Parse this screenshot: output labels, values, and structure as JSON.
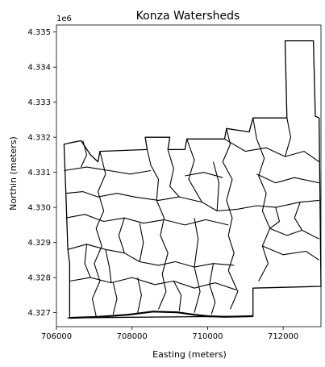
{
  "title": "Konza Watersheds",
  "x_axis": {
    "label": "Easting (meters)",
    "range": [
      706000,
      713000
    ],
    "ticks": [
      706000,
      708000,
      710000,
      712000
    ],
    "tick_labels": [
      "706000",
      "708000",
      "710000",
      "712000"
    ]
  },
  "y_axis": {
    "label": "Northin (meters)",
    "offset_label": "1e6",
    "range": [
      4326600,
      4335200
    ],
    "ticks": [
      4327000,
      4328000,
      4329000,
      4330000,
      4331000,
      4332000,
      4333000,
      4334000,
      4335000
    ],
    "tick_labels": [
      "4.327",
      "4.328",
      "4.329",
      "4.330",
      "4.331",
      "4.332",
      "4.333",
      "4.334",
      "4.335"
    ]
  },
  "style": {
    "stroke": "#000000",
    "fill": "none",
    "background": "#ffffff"
  },
  "watersheds": {
    "boundary": [
      [
        706300,
        4326850
      ],
      [
        711200,
        4326900
      ],
      [
        711200,
        4327700
      ],
      [
        713000,
        4327750
      ],
      [
        712950,
        4332550
      ],
      [
        712850,
        4332600
      ],
      [
        712800,
        4334750
      ],
      [
        712050,
        4334750
      ],
      [
        712100,
        4332550
      ],
      [
        711200,
        4332550
      ],
      [
        711100,
        4332150
      ],
      [
        710500,
        4332250
      ],
      [
        710450,
        4331950
      ],
      [
        709450,
        4331950
      ],
      [
        709400,
        4331650
      ],
      [
        708950,
        4331650
      ],
      [
        709000,
        4332000
      ],
      [
        708350,
        4332000
      ],
      [
        708400,
        4331650
      ],
      [
        707150,
        4331600
      ],
      [
        707100,
        4331300
      ],
      [
        706900,
        4331500
      ],
      [
        706650,
        4331900
      ],
      [
        706400,
        4331850
      ],
      [
        706200,
        4331800
      ],
      [
        706250,
        4330400
      ],
      [
        706300,
        4328800
      ],
      [
        706350,
        4328400
      ],
      [
        706350,
        4326850
      ]
    ],
    "bottom_edge": [
      [
        706350,
        4326850
      ],
      [
        707100,
        4326880
      ],
      [
        707900,
        4326940
      ],
      [
        708550,
        4327030
      ],
      [
        709200,
        4327010
      ],
      [
        709650,
        4326940
      ],
      [
        710000,
        4326900
      ],
      [
        710450,
        4326880
      ],
      [
        711200,
        4326900
      ]
    ],
    "divides": [
      [
        [
          706250,
          4330400
        ],
        [
          706700,
          4330450
        ],
        [
          707100,
          4330300
        ],
        [
          707600,
          4330400
        ],
        [
          708050,
          4330300
        ],
        [
          708700,
          4330200
        ],
        [
          709250,
          4330300
        ],
        [
          709850,
          4330150
        ],
        [
          710250,
          4329900
        ],
        [
          710800,
          4329950
        ],
        [
          711300,
          4330050
        ],
        [
          711800,
          4330000
        ],
        [
          712450,
          4330150
        ],
        [
          712950,
          4330200
        ]
      ],
      [
        [
          706300,
          4328800
        ],
        [
          706800,
          4328950
        ],
        [
          707300,
          4328800
        ],
        [
          707800,
          4328700
        ],
        [
          708200,
          4328450
        ],
        [
          708700,
          4328350
        ],
        [
          709150,
          4328450
        ],
        [
          709650,
          4328300
        ],
        [
          710150,
          4328400
        ],
        [
          710700,
          4328350
        ]
      ],
      [
        [
          708400,
          4331650
        ],
        [
          708500,
          4331200
        ],
        [
          708700,
          4330800
        ],
        [
          708650,
          4330200
        ],
        [
          708850,
          4329700
        ],
        [
          708750,
          4329200
        ],
        [
          708950,
          4328700
        ],
        [
          708800,
          4328100
        ],
        [
          708900,
          4327600
        ],
        [
          708700,
          4327100
        ]
      ],
      [
        [
          710500,
          4332250
        ],
        [
          710600,
          4331800
        ],
        [
          710400,
          4331300
        ],
        [
          710650,
          4330800
        ],
        [
          710500,
          4330200
        ],
        [
          710650,
          4329700
        ],
        [
          710550,
          4329200
        ],
        [
          710700,
          4328700
        ],
        [
          710550,
          4328200
        ],
        [
          710800,
          4327600
        ],
        [
          710600,
          4327100
        ]
      ],
      [
        [
          711200,
          4332550
        ],
        [
          711300,
          4331950
        ],
        [
          711500,
          4331400
        ],
        [
          711350,
          4330900
        ],
        [
          711550,
          4330400
        ],
        [
          711450,
          4329900
        ],
        [
          711650,
          4329400
        ],
        [
          711450,
          4328900
        ],
        [
          711600,
          4328400
        ],
        [
          711350,
          4327900
        ]
      ],
      [
        [
          707150,
          4331600
        ],
        [
          707300,
          4330950
        ],
        [
          707100,
          4330450
        ],
        [
          707250,
          4329900
        ],
        [
          707050,
          4329400
        ],
        [
          707200,
          4328900
        ],
        [
          707000,
          4328400
        ],
        [
          707150,
          4327900
        ],
        [
          706950,
          4327400
        ],
        [
          707050,
          4326900
        ]
      ],
      [
        [
          706200,
          4331050
        ],
        [
          706800,
          4331150
        ],
        [
          707400,
          4331050
        ],
        [
          707950,
          4330950
        ],
        [
          708500,
          4331050
        ]
      ],
      [
        [
          706250,
          4329700
        ],
        [
          706750,
          4329800
        ],
        [
          707250,
          4329600
        ],
        [
          707800,
          4329700
        ],
        [
          708300,
          4329550
        ],
        [
          708850,
          4329650
        ],
        [
          709400,
          4329500
        ],
        [
          709950,
          4329650
        ],
        [
          710550,
          4329500
        ]
      ],
      [
        [
          706350,
          4327900
        ],
        [
          706900,
          4328000
        ],
        [
          707450,
          4327850
        ],
        [
          708000,
          4328000
        ],
        [
          708600,
          4327800
        ],
        [
          709100,
          4327900
        ],
        [
          709650,
          4327700
        ],
        [
          710200,
          4327850
        ],
        [
          710750,
          4327650
        ]
      ],
      [
        [
          708950,
          4331650
        ],
        [
          709100,
          4331100
        ],
        [
          709000,
          4330600
        ],
        [
          709250,
          4330300
        ]
      ],
      [
        [
          709450,
          4331950
        ],
        [
          709650,
          4331350
        ],
        [
          709500,
          4330800
        ],
        [
          709850,
          4330150
        ]
      ],
      [
        [
          710450,
          4331950
        ],
        [
          711000,
          4331600
        ],
        [
          711550,
          4331700
        ],
        [
          712050,
          4331450
        ],
        [
          712550,
          4331600
        ],
        [
          712950,
          4331300
        ]
      ],
      [
        [
          711300,
          4330950
        ],
        [
          711800,
          4330700
        ],
        [
          712300,
          4330850
        ],
        [
          712950,
          4330700
        ]
      ],
      [
        [
          711650,
          4329400
        ],
        [
          712100,
          4329200
        ],
        [
          712500,
          4329350
        ],
        [
          712950,
          4329100
        ]
      ],
      [
        [
          711450,
          4328900
        ],
        [
          712000,
          4328650
        ],
        [
          712600,
          4328750
        ],
        [
          712950,
          4328500
        ]
      ],
      [
        [
          709400,
          4330900
        ],
        [
          709900,
          4331000
        ],
        [
          710400,
          4330850
        ]
      ],
      [
        [
          707800,
          4329700
        ],
        [
          707650,
          4329200
        ],
        [
          707800,
          4328700
        ]
      ],
      [
        [
          708200,
          4329550
        ],
        [
          708300,
          4329000
        ],
        [
          708200,
          4328450
        ]
      ],
      [
        [
          709650,
          4329700
        ],
        [
          709750,
          4329100
        ],
        [
          709650,
          4328300
        ],
        [
          709800,
          4327600
        ],
        [
          709650,
          4327000
        ]
      ],
      [
        [
          710150,
          4328400
        ],
        [
          710050,
          4327800
        ],
        [
          710200,
          4327300
        ],
        [
          710100,
          4326950
        ]
      ],
      [
        [
          707500,
          4327850
        ],
        [
          707600,
          4327400
        ],
        [
          707500,
          4326950
        ]
      ],
      [
        [
          708150,
          4328000
        ],
        [
          708250,
          4327500
        ],
        [
          708150,
          4327000
        ]
      ],
      [
        [
          709100,
          4327900
        ],
        [
          709300,
          4327500
        ],
        [
          709250,
          4327050
        ]
      ],
      [
        [
          706700,
          4331900
        ],
        [
          706800,
          4331500
        ],
        [
          706650,
          4331150
        ]
      ],
      [
        [
          712100,
          4332550
        ],
        [
          712200,
          4332000
        ],
        [
          712050,
          4331450
        ]
      ],
      [
        [
          711800,
          4330000
        ],
        [
          711900,
          4329600
        ],
        [
          711650,
          4329400
        ]
      ],
      [
        [
          712450,
          4330150
        ],
        [
          712300,
          4329700
        ],
        [
          712500,
          4329350
        ]
      ],
      [
        [
          706800,
          4328950
        ],
        [
          706750,
          4328400
        ],
        [
          706900,
          4328000
        ]
      ],
      [
        [
          707300,
          4328800
        ],
        [
          707400,
          4328300
        ],
        [
          707450,
          4327850
        ]
      ],
      [
        [
          710150,
          4331300
        ],
        [
          710300,
          4330700
        ],
        [
          710250,
          4329900
        ]
      ]
    ]
  }
}
